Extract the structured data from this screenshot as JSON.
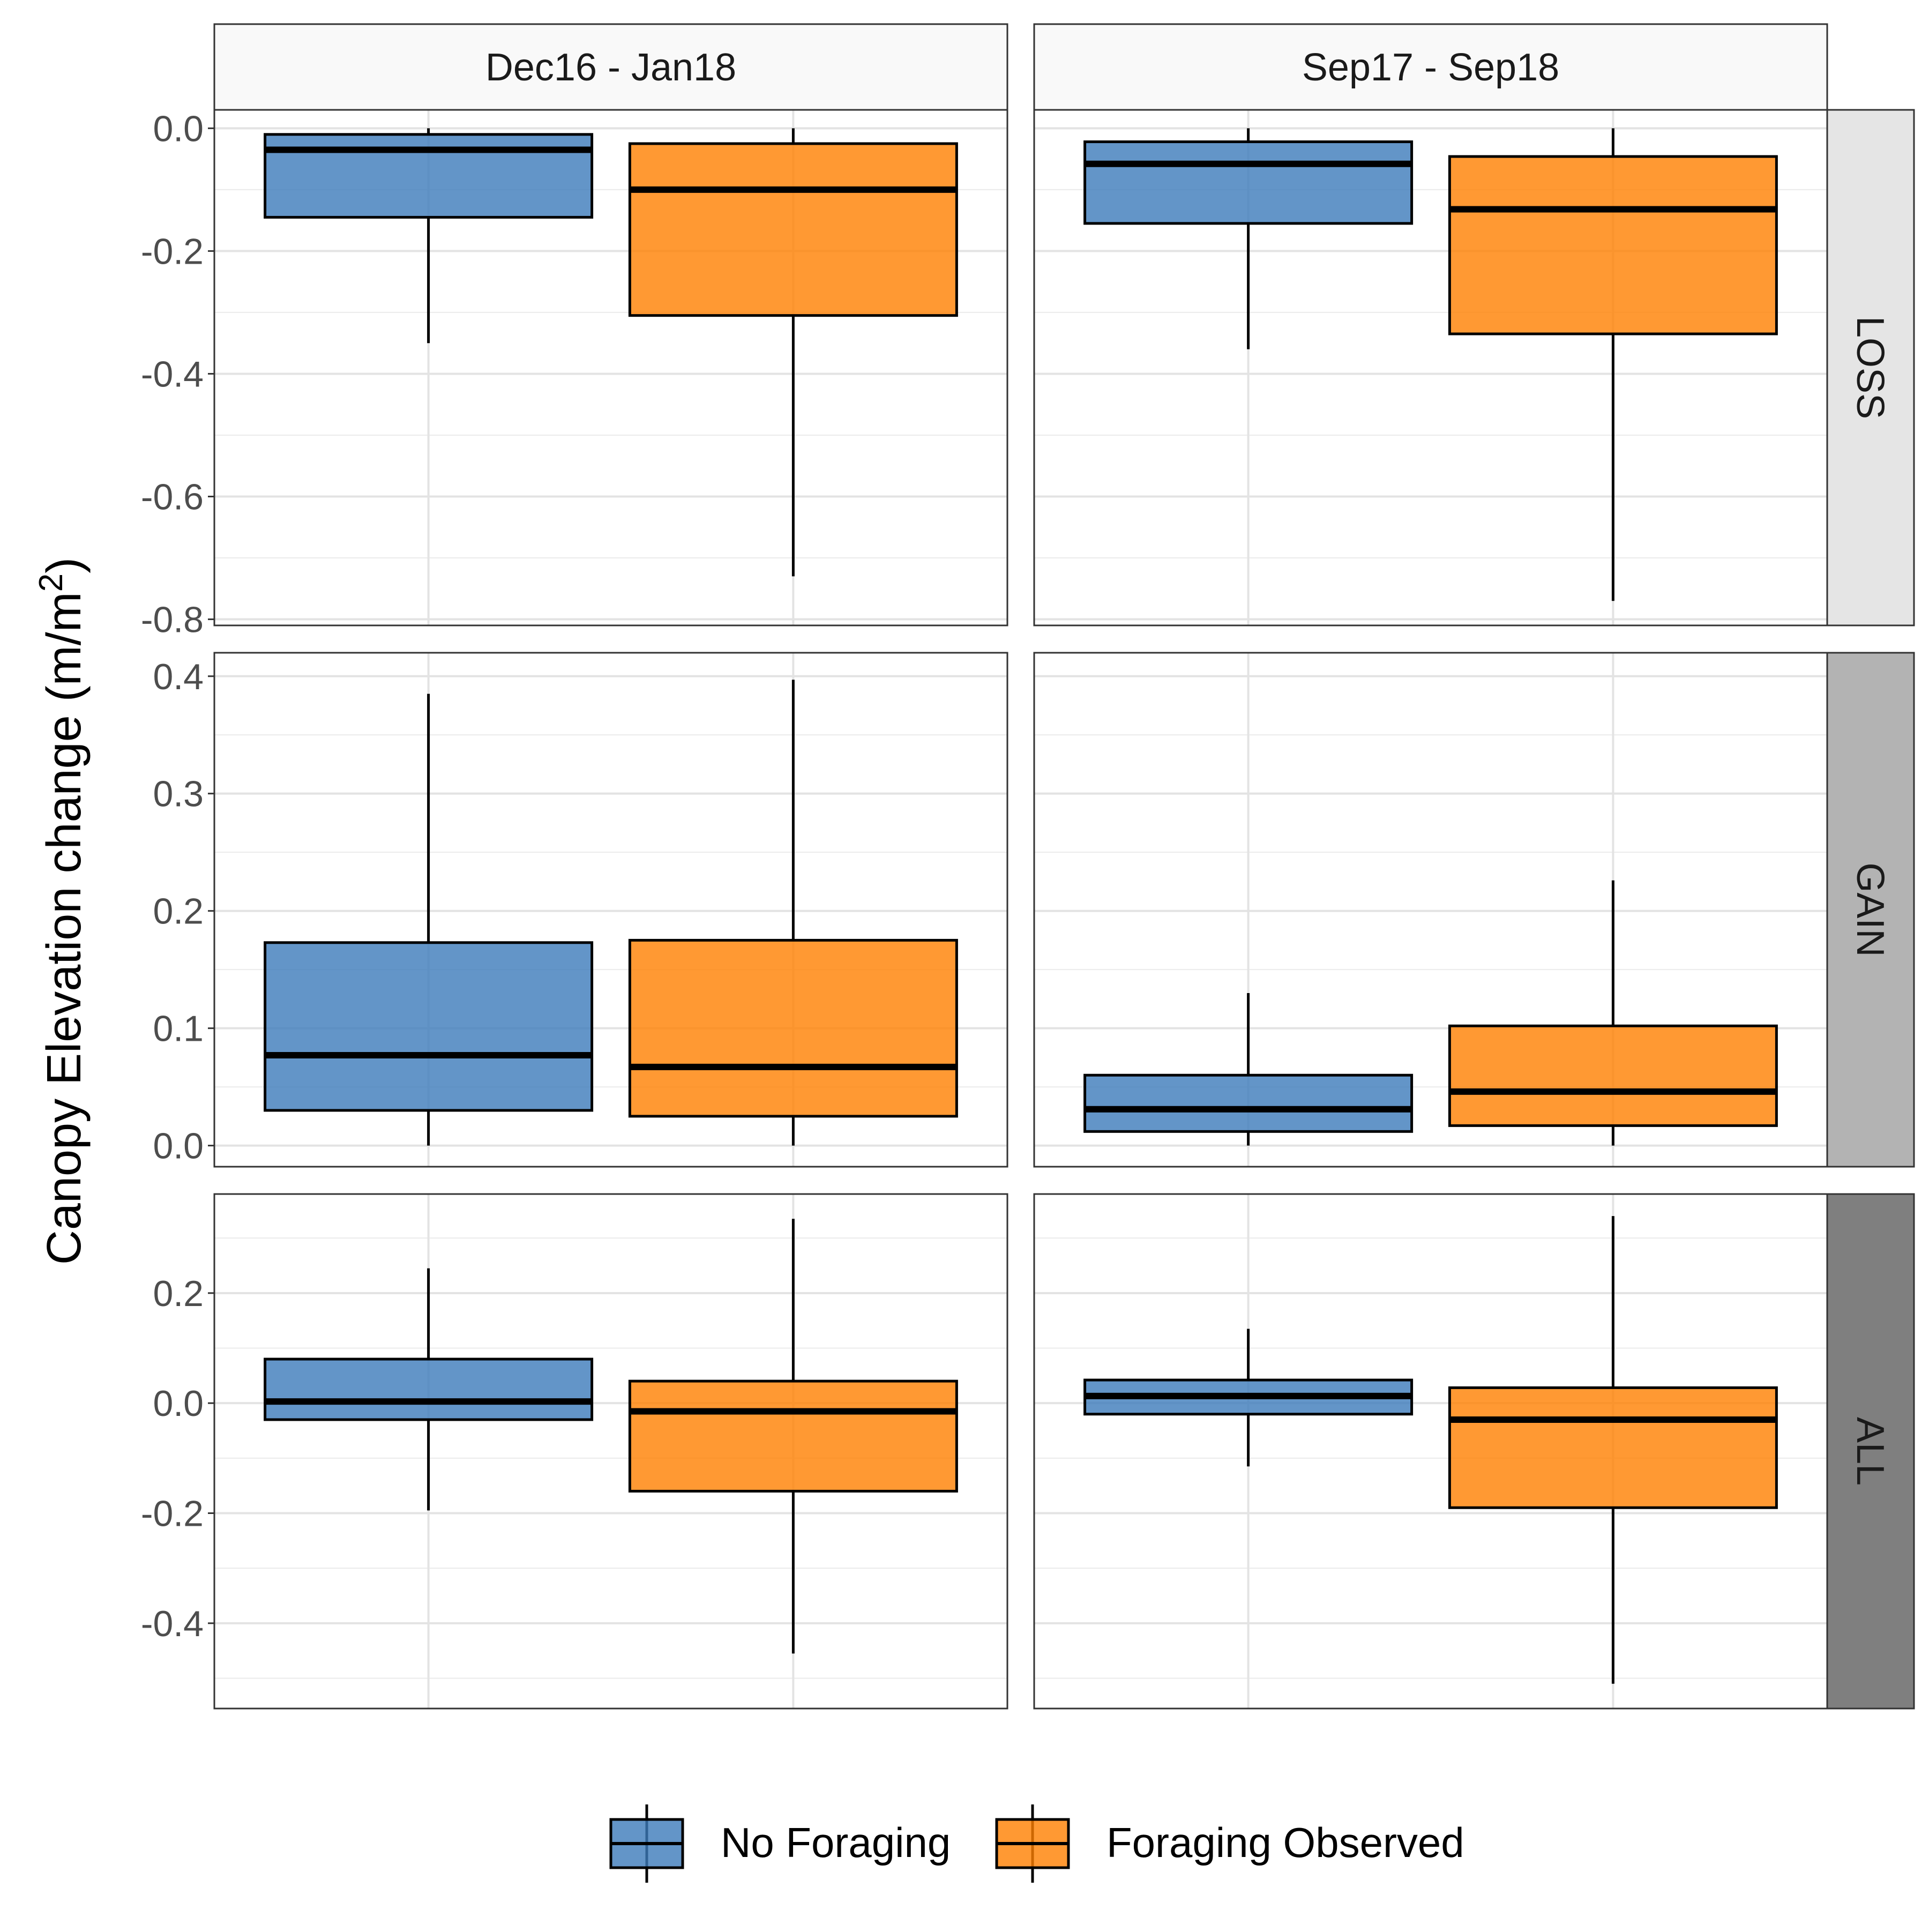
{
  "chart_data": {
    "type": "boxplot",
    "ylabel": "Canopy Elevation change",
    "ylabel_unit_base": "(m/m",
    "ylabel_unit_sup": "2",
    "ylabel_unit_close": ")",
    "columns": [
      "Dec16 - Jan18",
      "Sep17 - Sep18"
    ],
    "rows": [
      {
        "label": "LOSS",
        "strip_color": "#E5E5E5",
        "ylim": [
          -0.81,
          0.03
        ],
        "ticks": [
          0.0,
          -0.2,
          -0.4,
          -0.6,
          -0.8
        ],
        "tick_labels": [
          "0.0",
          "-0.2",
          "-0.4",
          "-0.6",
          "-0.8"
        ],
        "panels": [
          [
            {
              "whisker_low": -0.35,
              "q1": -0.145,
              "median": -0.035,
              "q3": -0.01,
              "whisker_high": 0.0
            },
            {
              "whisker_low": -0.73,
              "q1": -0.305,
              "median": -0.1,
              "q3": -0.025,
              "whisker_high": 0.0
            }
          ],
          [
            {
              "whisker_low": -0.36,
              "q1": -0.155,
              "median": -0.058,
              "q3": -0.022,
              "whisker_high": 0.0
            },
            {
              "whisker_low": -0.77,
              "q1": -0.335,
              "median": -0.132,
              "q3": -0.046,
              "whisker_high": 0.0
            }
          ]
        ]
      },
      {
        "label": "GAIN",
        "strip_color": "#B3B3B3",
        "ylim": [
          -0.018,
          0.42
        ],
        "ticks": [
          0.0,
          0.1,
          0.2,
          0.3,
          0.4
        ],
        "tick_labels": [
          "0.0",
          "0.1",
          "0.2",
          "0.3",
          "0.4"
        ],
        "panels": [
          [
            {
              "whisker_low": 0.0,
              "q1": 0.03,
              "median": 0.077,
              "q3": 0.173,
              "whisker_high": 0.385
            },
            {
              "whisker_low": 0.0,
              "q1": 0.025,
              "median": 0.067,
              "q3": 0.175,
              "whisker_high": 0.397
            }
          ],
          [
            {
              "whisker_low": 0.0,
              "q1": 0.012,
              "median": 0.031,
              "q3": 0.06,
              "whisker_high": 0.13
            },
            {
              "whisker_low": 0.0,
              "q1": 0.017,
              "median": 0.046,
              "q3": 0.102,
              "whisker_high": 0.226
            }
          ]
        ]
      },
      {
        "label": "ALL",
        "strip_color": "#7F7F7F",
        "ylim": [
          -0.555,
          0.38
        ],
        "ticks": [
          0.2,
          0.0,
          -0.2,
          -0.4
        ],
        "tick_labels": [
          "0.2",
          "0.0",
          "-0.2",
          "-0.4"
        ],
        "panels": [
          [
            {
              "whisker_low": -0.195,
              "q1": -0.03,
              "median": 0.003,
              "q3": 0.08,
              "whisker_high": 0.245
            },
            {
              "whisker_low": -0.455,
              "q1": -0.16,
              "median": -0.015,
              "q3": 0.04,
              "whisker_high": 0.335
            }
          ],
          [
            {
              "whisker_low": -0.115,
              "q1": -0.02,
              "median": 0.013,
              "q3": 0.042,
              "whisker_high": 0.135
            },
            {
              "whisker_low": -0.51,
              "q1": -0.19,
              "median": -0.03,
              "q3": 0.028,
              "whisker_high": 0.34
            }
          ]
        ]
      }
    ],
    "series": [
      {
        "name": "No Foraging",
        "color": "#3C7BBA"
      },
      {
        "name": "Foraging Observed",
        "color": "#FF8000"
      }
    ],
    "legend_position": "bottom",
    "grid": true
  }
}
